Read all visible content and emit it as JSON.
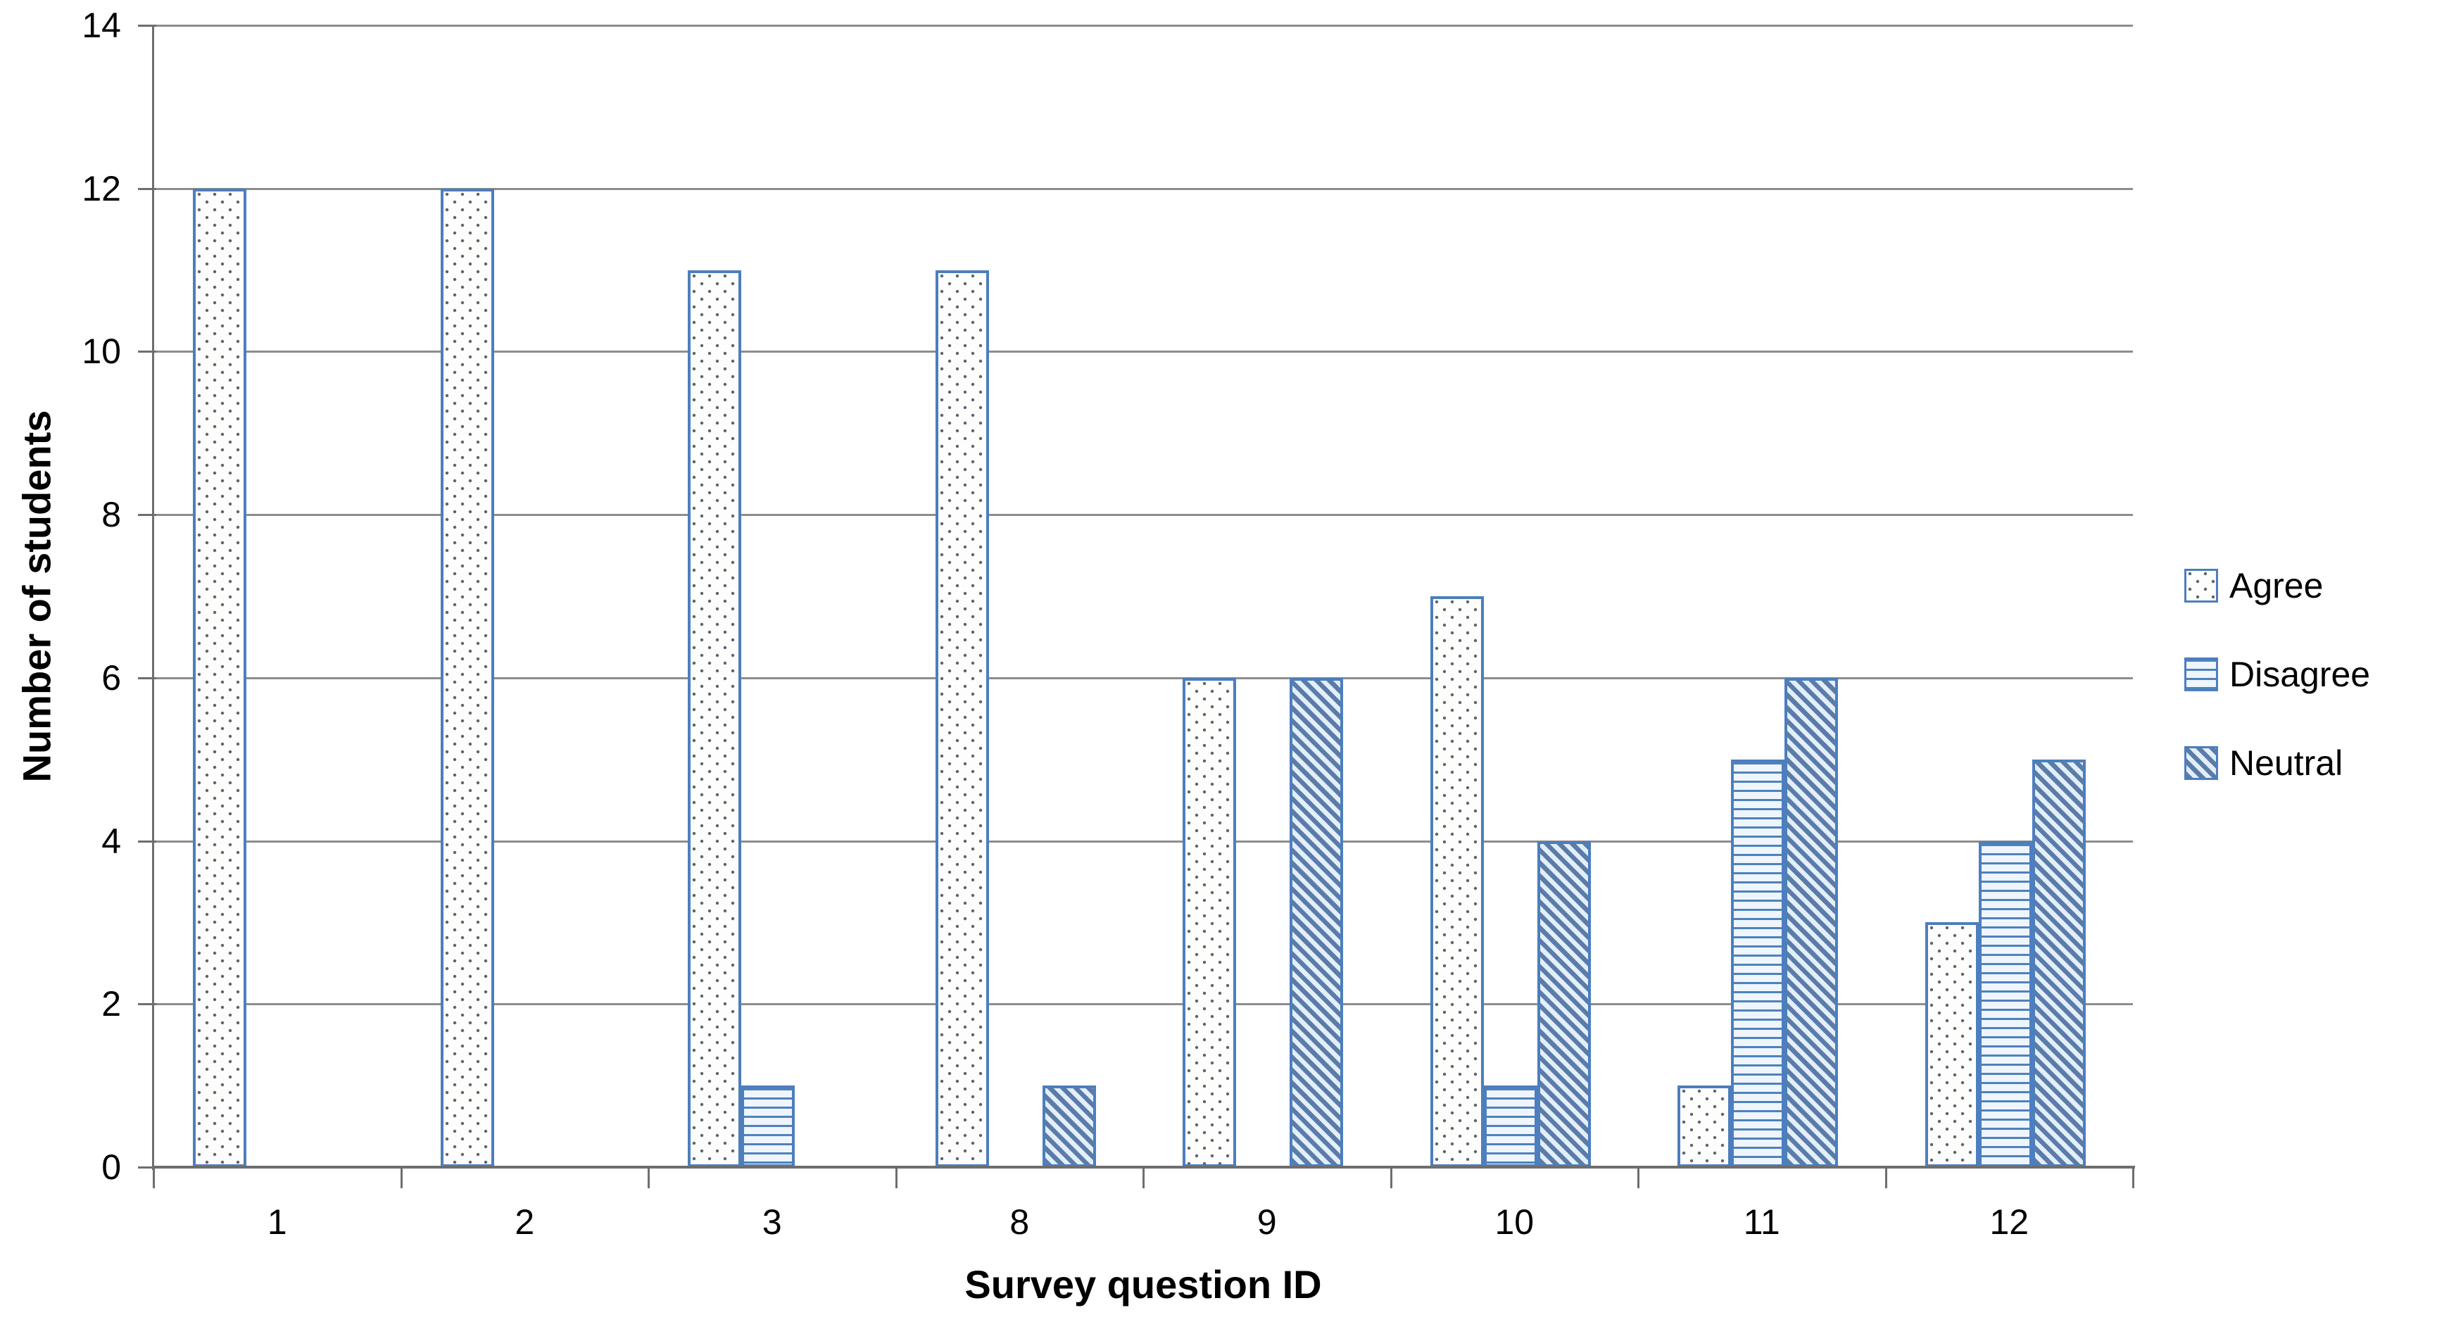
{
  "chart_data": {
    "type": "bar",
    "title": "",
    "xlabel": "Survey question ID",
    "ylabel": "Number of students",
    "categories": [
      "1",
      "2",
      "3",
      "8",
      "9",
      "10",
      "11",
      "12"
    ],
    "series": [
      {
        "name": "Agree",
        "pattern": "dots",
        "values": [
          12,
          12,
          11,
          11,
          6,
          7,
          1,
          3
        ]
      },
      {
        "name": "Disagree",
        "pattern": "hlines",
        "values": [
          0,
          0,
          1,
          0,
          0,
          1,
          5,
          4
        ]
      },
      {
        "name": "Neutral",
        "pattern": "diag",
        "values": [
          0,
          0,
          0,
          1,
          6,
          4,
          6,
          5
        ]
      }
    ],
    "ylim": [
      0,
      14
    ],
    "yticks": [
      0,
      2,
      4,
      6,
      8,
      10,
      12,
      14
    ],
    "grid": true,
    "legend_position": "right-middle"
  },
  "colors": {
    "bar_border": "#4d7ebd",
    "hline_stripe": "#4f81bd",
    "diag_stripe": "#5b7ca8",
    "dot": "#59626c",
    "dots_bg": "#fdfdfc",
    "hlines_bg": "#eef5fc",
    "diag_bg": "#e2eefa",
    "gridline": "#8d8d8d",
    "axis": "#6e6e6e",
    "text": "#000000"
  }
}
